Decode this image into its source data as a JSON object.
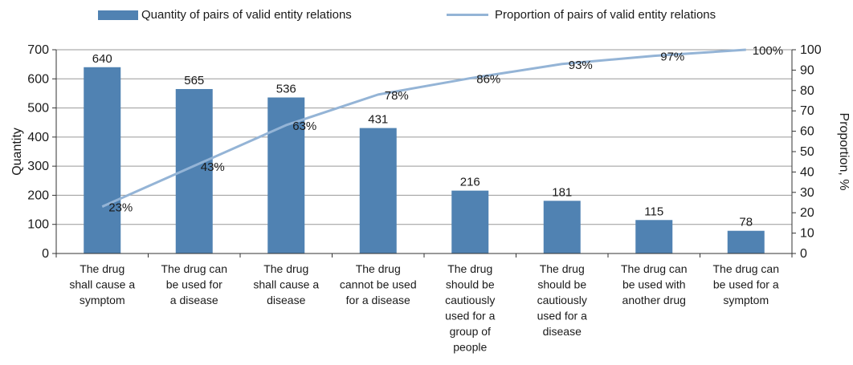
{
  "chart_data": {
    "type": "bar+line",
    "categories": [
      [
        "The drug",
        "shall cause a",
        "symptom"
      ],
      [
        "The drug can",
        "be used for",
        "a disease"
      ],
      [
        "The drug",
        "shall cause a",
        "disease"
      ],
      [
        "The drug",
        "cannot be used",
        "for a disease"
      ],
      [
        "The drug",
        "should be",
        "cautiously",
        "used for a",
        "group of",
        "people"
      ],
      [
        "The drug",
        "should be",
        "cautiously",
        "used for a",
        "disease"
      ],
      [
        "The drug can",
        "be used with",
        "another drug"
      ],
      [
        "The drug can",
        "be used for a",
        "symptom"
      ]
    ],
    "series": [
      {
        "name": "Quantity of pairs of valid entity relations",
        "type": "bar",
        "axis": "left",
        "values": [
          640,
          565,
          536,
          431,
          216,
          181,
          115,
          78
        ],
        "labels": [
          "640",
          "565",
          "536",
          "431",
          "216",
          "181",
          "115",
          "78"
        ]
      },
      {
        "name": "Proportion of pairs of valid entity relations",
        "type": "line",
        "axis": "right",
        "values": [
          23,
          43,
          63,
          78,
          86,
          93,
          97,
          100
        ],
        "labels": [
          "23%",
          "43%",
          "63%",
          "78%",
          "86%",
          "93%",
          "97%",
          "100%"
        ]
      }
    ],
    "ylabel": "Quantity",
    "y2label": "Proportion, %",
    "ylim": [
      0,
      700
    ],
    "yticks": [
      "0",
      "100",
      "200",
      "300",
      "400",
      "500",
      "600",
      "700"
    ],
    "y2lim": [
      0,
      100
    ],
    "y2ticks": [
      "0",
      "10",
      "20",
      "30",
      "40",
      "50",
      "60",
      "70",
      "80",
      "90",
      "100"
    ],
    "grid": true,
    "legend": "top",
    "colors": {
      "bar": "#5082b2",
      "line": "#94b4d6",
      "grid": "#999999",
      "axis": "#333333"
    }
  }
}
